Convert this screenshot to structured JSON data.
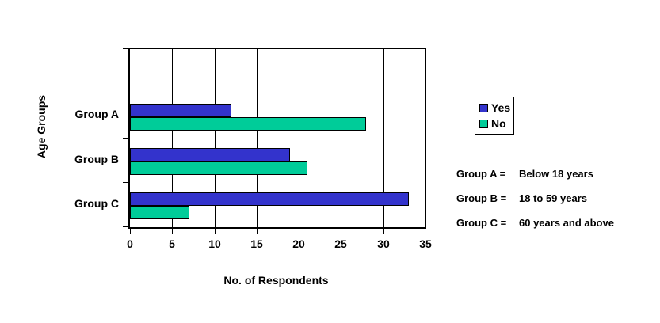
{
  "chart_data": {
    "type": "bar",
    "orientation": "horizontal",
    "title": "",
    "xlabel": "No. of Respondents",
    "ylabel": "Age Groups",
    "categories": [
      "Group A",
      "Group B",
      "Group C"
    ],
    "series": [
      {
        "name": "Yes",
        "color": "#3333CC",
        "values": [
          12,
          19,
          33
        ]
      },
      {
        "name": "No",
        "color": "#00CC99",
        "values": [
          28,
          21,
          7
        ]
      }
    ],
    "xlim": [
      0,
      35
    ],
    "xticks": [
      0,
      5,
      10,
      15,
      20,
      25,
      30,
      35
    ],
    "grid": "vertical-major",
    "gridline_color": "#000000",
    "bar_border_color": "#000000",
    "legend_position": "right-of-plot",
    "empty_top_category_slot": 1
  },
  "legend": {
    "items": [
      {
        "label": "Yes",
        "color": "#3333CC"
      },
      {
        "label": "No",
        "color": "#00CC99"
      }
    ]
  },
  "notes": [
    {
      "label": "Group A =",
      "text": "Below 18 years"
    },
    {
      "label": "Group B =",
      "text": "18 to 59 years"
    },
    {
      "label": "Group C =",
      "text": "60 years and above"
    }
  ],
  "background_color": "#FFFFFF"
}
